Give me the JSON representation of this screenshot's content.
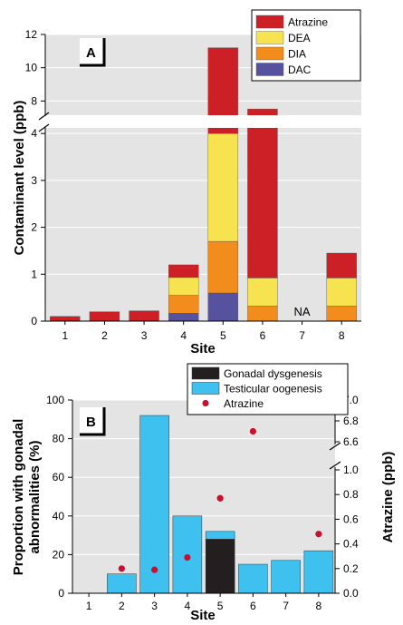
{
  "colors": {
    "atrazine": "#cc1f26",
    "dea": "#f7e350",
    "dia": "#f28c1c",
    "dac": "#56529d",
    "gonadal": "#231f20",
    "testicular": "#3ec1ef",
    "atrazine_point": "#c8102e",
    "panel_bg": "#e4e4e4",
    "gridline": "#ffffff"
  },
  "chart_data": [
    {
      "type": "bar",
      "panel_label": "A",
      "stacked": true,
      "categories": [
        "1",
        "2",
        "3",
        "4",
        "5",
        "6",
        "7",
        "8"
      ],
      "xlabel": "Site",
      "ylabel": "Contaminant level (ppb)",
      "y_axis_break": {
        "lower": [
          0,
          4.1
        ],
        "upper": [
          7.2,
          12
        ]
      },
      "lower_ticks": [
        "0",
        "1",
        "2",
        "3",
        "4"
      ],
      "upper_ticks": [
        "8",
        "10",
        "12"
      ],
      "grid": true,
      "legend_position": "top-right",
      "series": [
        {
          "name": "DAC",
          "key": "dac",
          "values": [
            0,
            0,
            0,
            0.17,
            0.6,
            0,
            null,
            0
          ]
        },
        {
          "name": "DIA",
          "key": "dia",
          "values": [
            0,
            0,
            0,
            0.38,
            1.1,
            0.32,
            null,
            0.32
          ]
        },
        {
          "name": "DEA",
          "key": "dea",
          "values": [
            0,
            0,
            0,
            0.38,
            2.3,
            0.6,
            null,
            0.6
          ]
        },
        {
          "name": "Atrazine",
          "key": "atrazine",
          "values": [
            0.1,
            0.2,
            0.22,
            0.27,
            7.2,
            6.6,
            null,
            0.53
          ]
        }
      ],
      "legend_order": [
        "Atrazine",
        "DEA",
        "DIA",
        "DAC"
      ],
      "annotations": [
        {
          "category": "7",
          "text": "NA"
        }
      ]
    },
    {
      "type": "bar",
      "panel_label": "B",
      "stacked": true,
      "categories": [
        "1",
        "2",
        "3",
        "4",
        "5",
        "6",
        "7",
        "8"
      ],
      "xlabel": "Site",
      "ylabel": "Proportion with gonadal abnormalities (%)",
      "ylabel_lines": [
        "Proportion with gonadal",
        "abnormalities (%)"
      ],
      "ylim": [
        0,
        100
      ],
      "y_ticks": [
        "0",
        "20",
        "40",
        "60",
        "80",
        "100"
      ],
      "grid": true,
      "legend_position": "top-right",
      "series": [
        {
          "name": "Gonadal dysgenesis",
          "key": "gonadal",
          "values": [
            0,
            0,
            0,
            0,
            28,
            0,
            0,
            0
          ]
        },
        {
          "name": "Testicular oogenesis",
          "key": "testicular",
          "values": [
            0,
            10,
            92,
            40,
            4,
            15,
            17,
            22
          ]
        }
      ],
      "secondary_axis": {
        "label": "Atrazine (ppb)",
        "break": {
          "lower": [
            0,
            1.0
          ],
          "upper": [
            6.6,
            7.0
          ]
        },
        "lower_ticks": [
          "0.0",
          "0.2",
          "0.4",
          "0.6",
          "0.8",
          "1.0"
        ],
        "upper_ticks": [
          "6.6",
          "6.8",
          "7.0"
        ],
        "points": {
          "name": "Atrazine",
          "key": "atrazine_point",
          "categories": [
            "2",
            "3",
            "4",
            "5",
            "6",
            "8"
          ],
          "values": [
            0.2,
            0.19,
            0.29,
            0.77,
            6.7,
            0.48
          ]
        }
      }
    }
  ]
}
